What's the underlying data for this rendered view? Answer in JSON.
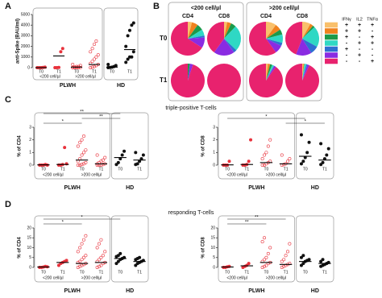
{
  "sections": [
    {
      "label": "A"
    },
    {
      "label": "B"
    },
    {
      "label": "C",
      "title": "triple-positive T-cells"
    },
    {
      "label": "D",
      "title": "responding T-cells"
    }
  ],
  "chart_data": [
    {
      "type": "scatter",
      "ylabel": "anti-Spike (BAU/ml)",
      "ylim": [
        0,
        5000
      ],
      "yticks": [
        0,
        1000,
        2000,
        3000,
        4000,
        5000
      ],
      "series": [
        {
          "name": "T0",
          "color": "#e8323c",
          "marker": "filled",
          "values": [
            0,
            0,
            0,
            20,
            50
          ],
          "median": 0
        },
        {
          "name": "T1",
          "color": "#e8323c",
          "marker": "filled",
          "values": [
            0,
            0,
            20,
            1500,
            1800
          ],
          "median": 1100
        },
        {
          "name": "T0",
          "color": "#e8323c",
          "marker": "open",
          "values": [
            0,
            0,
            0,
            0,
            10,
            20,
            50,
            100,
            100,
            200,
            300
          ],
          "median": 50
        },
        {
          "name": "T1",
          "color": "#e8323c",
          "marker": "open",
          "values": [
            0,
            50,
            100,
            200,
            300,
            400,
            600,
            800,
            1000,
            1200,
            1500,
            1800,
            2200,
            2500
          ],
          "median": 300
        },
        {
          "name": "T0",
          "color": "#111111",
          "marker": "filled",
          "values": [
            0,
            20,
            50,
            100,
            200,
            300
          ],
          "median": 50
        },
        {
          "name": "T1",
          "color": "#111111",
          "marker": "filled",
          "values": [
            500,
            800,
            1000,
            1000,
            1500,
            2000,
            3000,
            3500,
            4000,
            4200
          ],
          "median": 1700
        }
      ],
      "subgroups": [
        {
          "name": "<200 cell/µl",
          "series": [
            0,
            1
          ]
        },
        {
          "name": ">200 cell/µl",
          "series": [
            2,
            3
          ]
        }
      ],
      "groups": [
        {
          "name": "PLWH",
          "series": [
            0,
            1,
            2,
            3
          ]
        },
        {
          "name": "HD",
          "series": [
            4,
            5
          ]
        }
      ],
      "brackets": []
    },
    {
      "type": "pie-grid",
      "column_groups": [
        {
          "name": "<200 cell/µl",
          "columns": [
            "CD4",
            "CD8"
          ]
        },
        {
          "name": ">200 cell/µl",
          "columns": [
            "CD4",
            "CD8"
          ]
        }
      ],
      "rows": [
        "T0",
        "T1"
      ],
      "colors": [
        "#f9c06b",
        "#f0821e",
        "#1b9a4a",
        "#2fd8c4",
        "#2f6fd1",
        "#8a2be2",
        "#e8226e"
      ],
      "pies": [
        [
          [
            4,
            6,
            6,
            6,
            2,
            10,
            66
          ],
          [
            3,
            4,
            5,
            25,
            3,
            20,
            40
          ],
          [
            10,
            6,
            5,
            8,
            3,
            8,
            60
          ],
          [
            8,
            3,
            2,
            20,
            8,
            15,
            44
          ]
        ],
        [
          [
            0,
            0,
            2,
            0,
            0,
            3,
            95
          ],
          [
            0,
            0,
            0,
            0,
            0,
            0,
            100
          ],
          [
            2,
            2,
            2,
            2,
            0,
            2,
            90
          ],
          [
            1,
            1,
            0,
            2,
            1,
            2,
            93
          ]
        ]
      ],
      "legend": {
        "columns": [
          "IFNγ",
          "IL2",
          "TNFα"
        ],
        "rows": [
          [
            "+",
            "+",
            "+"
          ],
          [
            "+",
            "+",
            "-"
          ],
          [
            "+",
            "-",
            "+"
          ],
          [
            "-",
            "+",
            "+"
          ],
          [
            "+",
            "-",
            "-"
          ],
          [
            "-",
            "+",
            "-"
          ],
          [
            "-",
            "-",
            "+"
          ]
        ]
      }
    },
    {
      "type": "scatter",
      "ylabel": "% of CD4",
      "ylim": [
        0,
        3
      ],
      "yticks": [
        0,
        1,
        2,
        3
      ],
      "series": [
        {
          "name": "T0",
          "color": "#e8323c",
          "marker": "filled",
          "values": [
            0,
            0,
            0,
            0.05,
            0
          ],
          "median": 0.02
        },
        {
          "name": "T1",
          "color": "#e8323c",
          "marker": "filled",
          "values": [
            0,
            0,
            0.05,
            1.4,
            0.1
          ],
          "median": 0.05
        },
        {
          "name": "T0",
          "color": "#e8323c",
          "marker": "open",
          "values": [
            0,
            0,
            0.05,
            0.1,
            0.2,
            0.3,
            0.5,
            0.8,
            1.0,
            1.2,
            1.5,
            1.8,
            2.0,
            2.3
          ],
          "median": 0.4
        },
        {
          "name": "T1",
          "color": "#e8323c",
          "marker": "open",
          "values": [
            0,
            0,
            0,
            0.05,
            0.1,
            0.1,
            0.2,
            0.3,
            0.4,
            0.6,
            0.8
          ],
          "median": 0.1
        },
        {
          "name": "T0",
          "color": "#111111",
          "marker": "filled",
          "values": [
            0.05,
            0.2,
            0.5,
            0.8,
            1.1
          ],
          "median": 0.6
        },
        {
          "name": "T1",
          "color": "#111111",
          "marker": "filled",
          "values": [
            0.05,
            0.1,
            0.3,
            0.5,
            0.8,
            1.0
          ],
          "median": 0.4
        }
      ],
      "subgroups": [
        {
          "name": "<200 cell/µl",
          "series": [
            0,
            1
          ]
        },
        {
          "name": ">200 cell/µl",
          "series": [
            2,
            3
          ]
        }
      ],
      "groups": [
        {
          "name": "PLWH",
          "series": [
            0,
            1,
            2,
            3
          ]
        },
        {
          "name": "HD",
          "series": [
            4,
            5
          ]
        }
      ],
      "brackets": [
        {
          "label": "*",
          "series": [
            0,
            2
          ]
        },
        {
          "label": "**",
          "series": [
            2,
            4
          ]
        },
        {
          "label": "**",
          "series": [
            0,
            4
          ]
        }
      ]
    },
    {
      "type": "scatter",
      "ylabel": "% of CD8",
      "ylim": [
        0,
        3
      ],
      "yticks": [
        0,
        1,
        2,
        3
      ],
      "series": [
        {
          "name": "T0",
          "color": "#e8323c",
          "marker": "filled",
          "values": [
            0,
            0,
            0,
            0.3
          ],
          "median": 0.02
        },
        {
          "name": "T1",
          "color": "#e8323c",
          "marker": "filled",
          "values": [
            0,
            0,
            0.05,
            0.3,
            2.0
          ],
          "median": 0.05
        },
        {
          "name": "T0",
          "color": "#e8323c",
          "marker": "open",
          "values": [
            0,
            0,
            0.1,
            0.2,
            0.3,
            0.5,
            0.8,
            1.0,
            1.5,
            2.0
          ],
          "median": 0.2
        },
        {
          "name": "T1",
          "color": "#e8323c",
          "marker": "open",
          "values": [
            0,
            0.05,
            0.1,
            0.3,
            0.5,
            0.8
          ],
          "median": 0.1
        },
        {
          "name": "T0",
          "color": "#111111",
          "marker": "filled",
          "values": [
            0.1,
            0.3,
            0.6,
            1.0,
            1.8,
            2.4
          ],
          "median": 0.7
        },
        {
          "name": "T1",
          "color": "#111111",
          "marker": "filled",
          "values": [
            0.05,
            0.2,
            0.5,
            0.8,
            1.3,
            1.7
          ],
          "median": 0.4
        }
      ],
      "subgroups": [
        {
          "name": "<200 cell/µl",
          "series": [
            0,
            1
          ]
        },
        {
          "name": ">200 cell/µl",
          "series": [
            2,
            3
          ]
        }
      ],
      "groups": [
        {
          "name": "PLWH",
          "series": [
            0,
            1,
            2,
            3
          ]
        },
        {
          "name": "HD",
          "series": [
            4,
            5
          ]
        }
      ],
      "brackets": [
        {
          "label": "*",
          "series": [
            3,
            5
          ]
        },
        {
          "label": "*",
          "series": [
            0,
            4
          ]
        }
      ]
    },
    {
      "type": "scatter",
      "ylabel": "% of CD4",
      "ylim": [
        0,
        20
      ],
      "yticks": [
        0,
        5,
        10,
        15,
        20
      ],
      "series": [
        {
          "name": "T0",
          "color": "#e8323c",
          "marker": "filled",
          "values": [
            0,
            0,
            0.2,
            0.5,
            0.3
          ],
          "median": 0.2
        },
        {
          "name": "T1",
          "color": "#e8323c",
          "marker": "filled",
          "values": [
            1,
            2,
            2.5,
            3,
            3.5
          ],
          "median": 2.5
        },
        {
          "name": "T0",
          "color": "#e8323c",
          "marker": "open",
          "values": [
            0,
            0.5,
            1,
            1.5,
            2,
            2.5,
            3,
            4,
            5,
            6,
            8,
            10,
            12,
            14,
            16
          ],
          "median": 2
        },
        {
          "name": "T1",
          "color": "#e8323c",
          "marker": "open",
          "values": [
            0,
            0.5,
            1,
            2,
            2.5,
            3,
            4,
            5,
            6,
            8,
            10,
            12,
            14
          ],
          "median": 2.5
        },
        {
          "name": "T0",
          "color": "#111111",
          "marker": "filled",
          "values": [
            2,
            3,
            4,
            4.5,
            5,
            5.5,
            6,
            7
          ],
          "median": 4.5
        },
        {
          "name": "T1",
          "color": "#111111",
          "marker": "filled",
          "values": [
            1,
            2,
            2.5,
            3,
            3.5,
            4,
            4.5,
            5
          ],
          "median": 3
        }
      ],
      "subgroups": [
        {
          "name": "<200 cell/µl",
          "series": [
            0,
            1
          ]
        },
        {
          "name": ">200 cell/µl",
          "series": [
            2,
            3
          ]
        }
      ],
      "groups": [
        {
          "name": "PLWH",
          "series": [
            0,
            1,
            2,
            3
          ]
        },
        {
          "name": "HD",
          "series": [
            4,
            5
          ]
        }
      ],
      "brackets": [
        {
          "label": "*",
          "series": [
            0,
            2
          ]
        },
        {
          "label": "*",
          "series": [
            0,
            4
          ]
        }
      ]
    },
    {
      "type": "scatter",
      "ylabel": "% of CD8",
      "ylim": [
        0,
        20
      ],
      "yticks": [
        0,
        5,
        10,
        15,
        20
      ],
      "series": [
        {
          "name": "T0",
          "color": "#e8323c",
          "marker": "filled",
          "values": [
            0,
            0,
            0.3,
            0.5
          ],
          "median": 0.2
        },
        {
          "name": "T1",
          "color": "#e8323c",
          "marker": "filled",
          "values": [
            0,
            0.5,
            1,
            2
          ],
          "median": 0.8
        },
        {
          "name": "T0",
          "color": "#e8323c",
          "marker": "open",
          "values": [
            0,
            0.5,
            1,
            2,
            2.5,
            3,
            4,
            5,
            7,
            10,
            13,
            15
          ],
          "median": 2.5
        },
        {
          "name": "T1",
          "color": "#e8323c",
          "marker": "open",
          "values": [
            0,
            0.5,
            1,
            1.5,
            2,
            3,
            4,
            6,
            8,
            12
          ],
          "median": 1.5
        },
        {
          "name": "T0",
          "color": "#111111",
          "marker": "filled",
          "values": [
            1,
            2,
            3,
            3.5,
            4,
            5,
            6
          ],
          "median": 3
        },
        {
          "name": "T1",
          "color": "#111111",
          "marker": "filled",
          "values": [
            0.5,
            1,
            1.5,
            2,
            2.5,
            3,
            4
          ],
          "median": 2
        }
      ],
      "subgroups": [
        {
          "name": "<200 cell/µl",
          "series": [
            0,
            1
          ]
        },
        {
          "name": ">200 cell/µl",
          "series": [
            2,
            3
          ]
        }
      ],
      "groups": [
        {
          "name": "PLWH",
          "series": [
            0,
            1,
            2,
            3
          ]
        },
        {
          "name": "HD",
          "series": [
            4,
            5
          ]
        }
      ],
      "brackets": [
        {
          "label": "**",
          "series": [
            0,
            2
          ]
        },
        {
          "label": "**",
          "series": [
            0,
            3
          ]
        }
      ]
    }
  ]
}
